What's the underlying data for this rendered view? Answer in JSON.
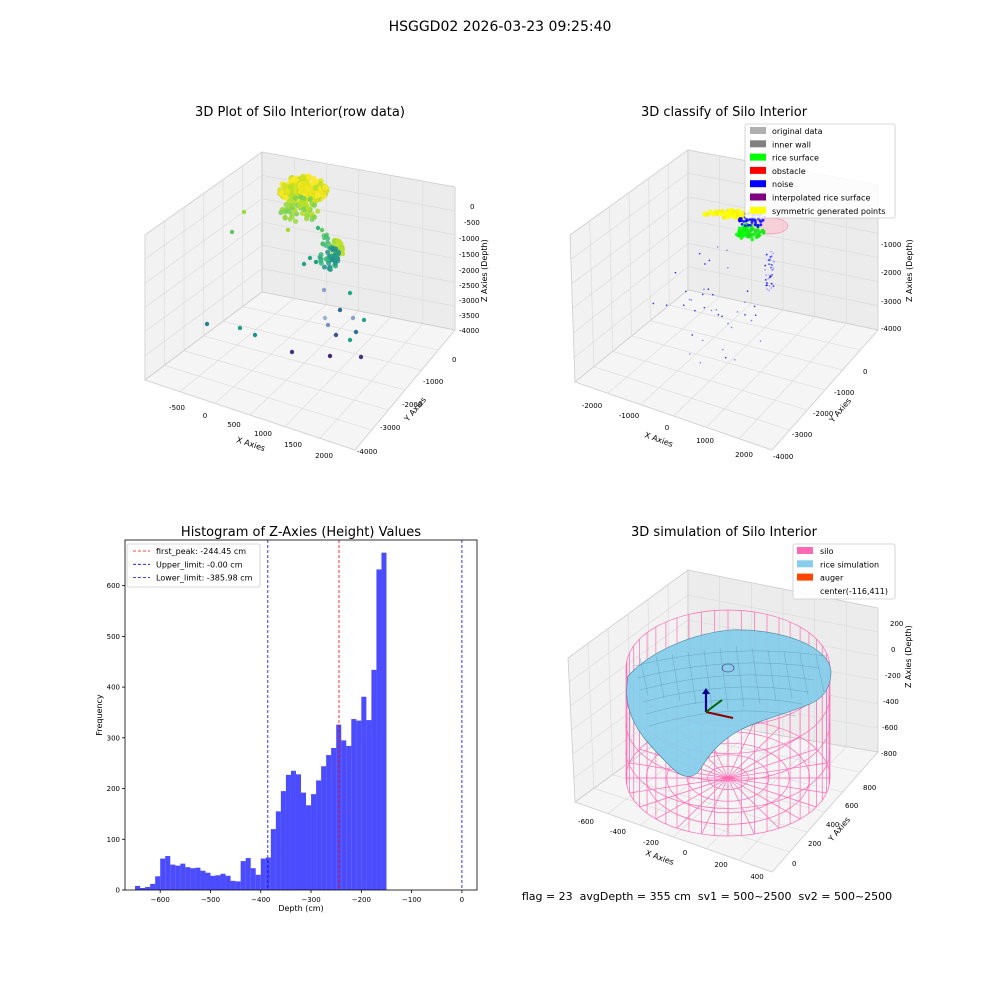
{
  "suptitle": "HSGGD02 2026-03-23 09:25:40",
  "panels": {
    "raw": {
      "title": "3D Plot of Silo Interior(row data)",
      "xlabel": "X Axies",
      "ylabel": "Y Axies",
      "zlabel": "Z Axies (Depth)",
      "xticks": [
        "-500",
        "0",
        "500",
        "1000",
        "1500",
        "2000"
      ],
      "yticks": [
        "0",
        "-1000",
        "-2000",
        "-3000",
        "-4000"
      ],
      "zticks": [
        "0",
        "-500",
        "-1000",
        "-1500",
        "-2000",
        "-2500",
        "-3000",
        "-3500",
        "-4000"
      ]
    },
    "classify": {
      "title": "3D classify of Silo Interior",
      "xlabel": "X Axies",
      "ylabel": "Y Axies",
      "zlabel": "Z Axies (Depth)",
      "xticks": [
        "-2000",
        "-1000",
        "0",
        "1000",
        "2000"
      ],
      "yticks": [
        "0",
        "-1000",
        "-2000",
        "-3000",
        "-4000"
      ],
      "zticks": [
        "-1000",
        "-2000",
        "-3000",
        "-4000"
      ],
      "legend": [
        {
          "label": "original data",
          "color": "#b0b0b0"
        },
        {
          "label": "inner wall",
          "color": "#808080"
        },
        {
          "label": "rice surface",
          "color": "#00ff00"
        },
        {
          "label": "obstacle",
          "color": "#ff0000"
        },
        {
          "label": "noise",
          "color": "#0000ff"
        },
        {
          "label": "interpolated rice surface",
          "color": "#800080"
        },
        {
          "label": "symmetric generated points",
          "color": "#ffff00"
        }
      ]
    },
    "simulation": {
      "title": "3D simulation of Silo Interior",
      "xlabel": "X Axies",
      "ylabel": "Y Axies",
      "zlabel": "Z Axies (Depth)",
      "xticks": [
        "-600",
        "-400",
        "-200",
        "0",
        "200",
        "400"
      ],
      "yticks": [
        "0",
        "200",
        "400",
        "600",
        "800"
      ],
      "zticks": [
        "200",
        "0",
        "-200",
        "-400",
        "-600",
        "-800"
      ],
      "legend": [
        {
          "label": "silo",
          "color": "#ff69b4"
        },
        {
          "label": "rice simulation",
          "color": "#87ceeb"
        },
        {
          "label": "auger",
          "color": "#ff4500"
        },
        {
          "label": "center(-116,411)",
          "color": ""
        }
      ],
      "footer": "flag = 23  avgDepth = 355 cm  sv1 = 500~2500  sv2 = 500~2500"
    }
  },
  "chart_data": [
    {
      "type": "bar",
      "title": "Histogram of Z-Axies (Height) Values",
      "xlabel": "Depth (cm)",
      "ylabel": "Frequency",
      "xlim": [
        -670,
        30
      ],
      "ylim": [
        0,
        690
      ],
      "xticks": [
        -600,
        -500,
        -400,
        -300,
        -200,
        -100,
        0
      ],
      "yticks": [
        0,
        100,
        200,
        300,
        400,
        500,
        600
      ],
      "bin_start": -650,
      "bin_width": 10,
      "values": [
        8,
        4,
        6,
        12,
        27,
        62,
        67,
        50,
        48,
        52,
        45,
        43,
        44,
        38,
        34,
        28,
        29,
        32,
        28,
        18,
        17,
        57,
        63,
        43,
        30,
        62,
        64,
        120,
        155,
        195,
        227,
        235,
        228,
        192,
        167,
        189,
        216,
        244,
        266,
        280,
        326,
        295,
        284,
        337,
        334,
        381,
        335,
        434,
        632,
        665
      ],
      "bar_color": "#0000ff",
      "lines": [
        {
          "label": "first_peak: -244.45 cm",
          "x": -244.45,
          "color": "#ff0000"
        },
        {
          "label": "Upper_limit: -0.00 cm",
          "x": 0,
          "color": "#0000ff"
        },
        {
          "label": "Lower_limit: -385.98 cm",
          "x": -385.98,
          "color": "#0000ff"
        }
      ]
    }
  ]
}
